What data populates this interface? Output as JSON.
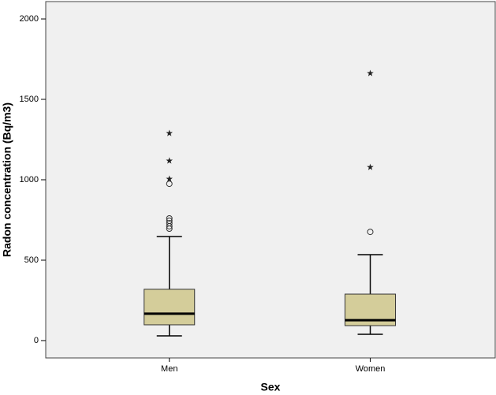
{
  "chart_data": {
    "type": "box",
    "x_label": "Sex",
    "y_label": "Radon concentration (Bq/m3)",
    "categories": [
      "Men",
      "Women"
    ],
    "color": "#d4cd9a",
    "boxes": [
      {
        "min": 29,
        "q1": 98,
        "median": 167,
        "q3": 319,
        "max": 647,
        "outliers": [
          975,
          760,
          745,
          730,
          711,
          696
        ],
        "extremes": [
          1289,
          1118,
          1005
        ]
      },
      {
        "min": 39,
        "q1": 93,
        "median": 127,
        "q3": 289,
        "max": 534,
        "outliers": [
          676
        ],
        "extremes": [
          1662,
          1078
        ]
      }
    ],
    "ylim": [
      -108,
      2108
    ],
    "yticks": [
      0,
      500,
      1000,
      1500,
      2000
    ]
  }
}
